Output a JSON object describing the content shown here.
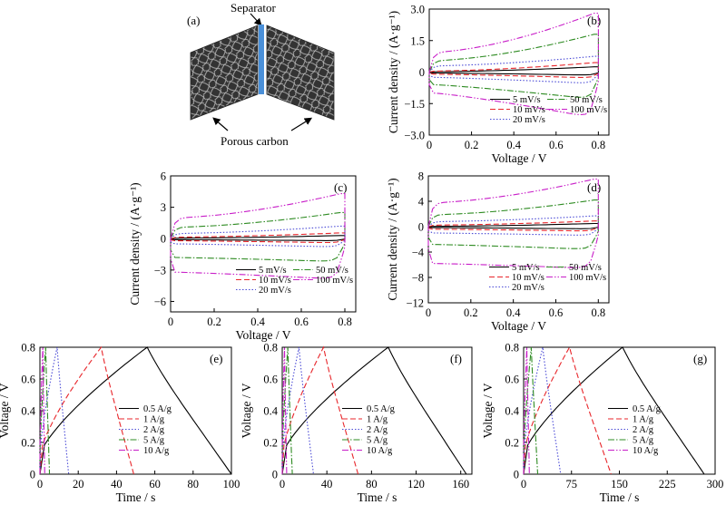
{
  "schematic": {
    "panel_label": "(a)",
    "separator_label": "Separator",
    "electrode_label": "Porous carbon",
    "colors": {
      "separator": "#4a90d9",
      "electrode": "#3a3a3a",
      "fiber": "#bcbcbc"
    }
  },
  "chart_data": [
    {
      "id": "b",
      "type": "line",
      "panel_label": "(b)",
      "xlabel": "Voltage / V",
      "ylabel": "Current density / (A·g⁻¹)",
      "xlim": [
        0,
        0.85
      ],
      "ylim": [
        -3.0,
        3.0
      ],
      "xticks": [
        0,
        0.2,
        0.4,
        0.6,
        0.8
      ],
      "xtick_labels": [
        "0",
        "0.2",
        "0.4",
        "0.6",
        "0.8"
      ],
      "yticks": [
        -3.0,
        -1.5,
        0,
        1.5,
        3.0
      ],
      "ytick_labels": [
        "−3.0",
        "−1.5",
        "0",
        "1.5",
        "3.0"
      ],
      "legend": {
        "placement": "bottom-right",
        "columns": [
          [
            "5 mV/s",
            "10 mV/s",
            "20 mV/s"
          ],
          [
            "50 mV/s",
            "100 mV/s"
          ]
        ]
      },
      "series": [
        {
          "name": "5 mV/s",
          "upper_start": 0.02,
          "upper_end": 0.25,
          "lower_start": -0.04,
          "lower_end": -0.15,
          "color": "#000000",
          "dash": ""
        },
        {
          "name": "10 mV/s",
          "upper_start": 0.05,
          "upper_end": 0.45,
          "lower_start": -0.1,
          "lower_end": -0.28,
          "color": "#e8262b",
          "dash": "6,3"
        },
        {
          "name": "20 mV/s",
          "upper_start": 0.3,
          "upper_end": 0.75,
          "lower_start": -0.25,
          "lower_end": -0.55,
          "color": "#4a4ad6",
          "dash": "1.5,2"
        },
        {
          "name": "50 mV/s",
          "upper_start": 0.55,
          "upper_end": 1.8,
          "lower_start": -0.6,
          "lower_end": -1.3,
          "color": "#2e8b22",
          "dash": "7,2,1.5,2"
        },
        {
          "name": "100 mV/s",
          "upper_start": 0.95,
          "upper_end": 2.8,
          "lower_start": -1.0,
          "lower_end": -2.2,
          "color": "#c81ec8",
          "dash": "7,2,1.5,2,1.5,2"
        }
      ]
    },
    {
      "id": "c",
      "type": "line",
      "panel_label": "(c)",
      "xlabel": "Voltage / V",
      "ylabel": "Current density / (A·g⁻¹)",
      "xlim": [
        0,
        0.85
      ],
      "ylim": [
        -7.0,
        6.0
      ],
      "xticks": [
        0,
        0.2,
        0.4,
        0.6,
        0.8
      ],
      "xtick_labels": [
        "0",
        "0.2",
        "0.4",
        "0.6",
        "0.8"
      ],
      "yticks": [
        -6,
        -3,
        0,
        3,
        6
      ],
      "ytick_labels": [
        "−6",
        "−3",
        "0",
        "3",
        "6"
      ],
      "legend": {
        "placement": "bottom-right",
        "columns": [
          [
            "5 mV/s",
            "10 mV/s",
            "20 mV/s"
          ],
          [
            "50 mV/s",
            "100 mV/s"
          ]
        ]
      },
      "series": [
        {
          "name": "5 mV/s",
          "upper_start": 0.05,
          "upper_end": 0.3,
          "lower_start": -0.1,
          "lower_end": -0.2,
          "color": "#000000",
          "dash": ""
        },
        {
          "name": "10 mV/s",
          "upper_start": 0.15,
          "upper_end": 0.55,
          "lower_start": -0.2,
          "lower_end": -0.4,
          "color": "#e8262b",
          "dash": "6,3"
        },
        {
          "name": "20 mV/s",
          "upper_start": 0.5,
          "upper_end": 1.2,
          "lower_start": -0.5,
          "lower_end": -0.8,
          "color": "#4a4ad6",
          "dash": "1.5,2"
        },
        {
          "name": "50 mV/s",
          "upper_start": 1.1,
          "upper_end": 2.5,
          "lower_start": -1.8,
          "lower_end": -2.2,
          "color": "#2e8b22",
          "dash": "7,2,1.5,2"
        },
        {
          "name": "100 mV/s",
          "upper_start": 2.0,
          "upper_end": 4.3,
          "lower_start": -3.2,
          "lower_end": -3.9,
          "color": "#c81ec8",
          "dash": "7,2,1.5,2,1.5,2"
        }
      ]
    },
    {
      "id": "d",
      "type": "line",
      "panel_label": "(d)",
      "xlabel": "Voltage / V",
      "ylabel": "Current density / (A·g⁻¹)",
      "xlim": [
        0,
        0.85
      ],
      "ylim": [
        -12.0,
        8.0
      ],
      "xticks": [
        0,
        0.2,
        0.4,
        0.6,
        0.8
      ],
      "xtick_labels": [
        "0",
        "0.2",
        "0.4",
        "0.6",
        "0.8"
      ],
      "yticks": [
        -12,
        -8,
        -4,
        0,
        4,
        8
      ],
      "ytick_labels": [
        "−12",
        "−8",
        "−4",
        "0",
        "4",
        "8"
      ],
      "legend": {
        "placement": "bottom-right",
        "columns": [
          [
            "5 mV/s",
            "10 mV/s",
            "20 mV/s"
          ],
          [
            "50 mV/s",
            "100 mV/s"
          ]
        ]
      },
      "series": [
        {
          "name": "5 mV/s",
          "upper_start": 0.05,
          "upper_end": 0.5,
          "lower_start": -0.15,
          "lower_end": -0.35,
          "color": "#000000",
          "dash": ""
        },
        {
          "name": "10 mV/s",
          "upper_start": 0.25,
          "upper_end": 0.9,
          "lower_start": -0.4,
          "lower_end": -0.7,
          "color": "#e8262b",
          "dash": "6,3"
        },
        {
          "name": "20 mV/s",
          "upper_start": 0.8,
          "upper_end": 1.7,
          "lower_start": -1.0,
          "lower_end": -1.4,
          "color": "#4a4ad6",
          "dash": "1.5,2"
        },
        {
          "name": "50 mV/s",
          "upper_start": 1.9,
          "upper_end": 4.2,
          "lower_start": -2.8,
          "lower_end": -3.6,
          "color": "#2e8b22",
          "dash": "7,2,1.5,2"
        },
        {
          "name": "100 mV/s",
          "upper_start": 3.8,
          "upper_end": 7.5,
          "lower_start": -5.8,
          "lower_end": -6.6,
          "color": "#c81ec8",
          "dash": "7,2,1.5,2,1.5,2"
        }
      ]
    },
    {
      "id": "e",
      "type": "line",
      "panel_label": "(e)",
      "xlabel": "Time / s",
      "ylabel": "Voltage / V",
      "xlim": [
        0,
        100
      ],
      "ylim": [
        0,
        0.8
      ],
      "xticks": [
        0,
        20,
        40,
        60,
        80,
        100
      ],
      "xtick_labels": [
        "0",
        "20",
        "40",
        "60",
        "80",
        "100"
      ],
      "yticks": [
        0,
        0.2,
        0.4,
        0.6,
        0.8
      ],
      "ytick_labels": [
        "0",
        "0.2",
        "0.4",
        "0.6",
        "0.8"
      ],
      "legend": {
        "placement": "center-right",
        "columns": [
          [
            "0.5 A/g",
            "1 A/g",
            "2 A/g",
            "5 A/g",
            "10 A/g"
          ]
        ]
      },
      "series": [
        {
          "name": "0.5 A/g",
          "t_peak": 56,
          "t_end": 100,
          "color": "#000000",
          "dash": ""
        },
        {
          "name": "1 A/g",
          "t_peak": 32,
          "t_end": 49,
          "color": "#e8262b",
          "dash": "6,3"
        },
        {
          "name": "2 A/g",
          "t_peak": 9,
          "t_end": 15,
          "color": "#4a4ad6",
          "dash": "1.5,2"
        },
        {
          "name": "5 A/g",
          "t_peak": 3,
          "t_end": 5,
          "color": "#2e8b22",
          "dash": "7,2,1.5,2"
        },
        {
          "name": "10 A/g",
          "t_peak": 1.5,
          "t_end": 2.5,
          "color": "#c81ec8",
          "dash": "7,2,1.5,2,1.5,2"
        }
      ]
    },
    {
      "id": "f",
      "type": "line",
      "panel_label": "(f)",
      "xlabel": "Time / s",
      "ylabel": "Voltage / V",
      "xlim": [
        0,
        170
      ],
      "ylim": [
        0,
        0.8
      ],
      "xticks": [
        0,
        40,
        80,
        120,
        160
      ],
      "xtick_labels": [
        "0",
        "40",
        "80",
        "120",
        "160"
      ],
      "yticks": [
        0,
        0.2,
        0.4,
        0.6,
        0.8
      ],
      "ytick_labels": [
        "0",
        "0.2",
        "0.4",
        "0.6",
        "0.8"
      ],
      "legend": {
        "placement": "center-right",
        "columns": [
          [
            "0.5 A/g",
            "1 A/g",
            "2 A/g",
            "5 A/g",
            "10 A/g"
          ]
        ]
      },
      "series": [
        {
          "name": "0.5 A/g",
          "t_peak": 95,
          "t_end": 165,
          "color": "#000000",
          "dash": ""
        },
        {
          "name": "1 A/g",
          "t_peak": 37,
          "t_end": 68,
          "color": "#e8262b",
          "dash": "6,3"
        },
        {
          "name": "2 A/g",
          "t_peak": 15,
          "t_end": 28,
          "color": "#4a4ad6",
          "dash": "1.5,2"
        },
        {
          "name": "5 A/g",
          "t_peak": 5,
          "t_end": 9,
          "color": "#2e8b22",
          "dash": "7,2,1.5,2"
        },
        {
          "name": "10 A/g",
          "t_peak": 2,
          "t_end": 4,
          "color": "#c81ec8",
          "dash": "7,2,1.5,2,1.5,2"
        }
      ]
    },
    {
      "id": "g",
      "type": "line",
      "panel_label": "(g)",
      "xlabel": "Time / s",
      "ylabel": "Voltage / V",
      "xlim": [
        0,
        300
      ],
      "ylim": [
        0,
        0.8
      ],
      "xticks": [
        0,
        75,
        150,
        225,
        300
      ],
      "xtick_labels": [
        "0",
        "75",
        "150",
        "225",
        "300"
      ],
      "yticks": [
        0,
        0.2,
        0.4,
        0.6,
        0.8
      ],
      "ytick_labels": [
        "0",
        "0.2",
        "0.4",
        "0.6",
        "0.8"
      ],
      "legend": {
        "placement": "center-right",
        "columns": [
          [
            "0.5 A/g",
            "1 A/g",
            "2 A/g",
            "5 A/g",
            "10 A/g"
          ]
        ]
      },
      "series": [
        {
          "name": "0.5 A/g",
          "t_peak": 155,
          "t_end": 283,
          "color": "#000000",
          "dash": ""
        },
        {
          "name": "1 A/g",
          "t_peak": 72,
          "t_end": 137,
          "color": "#e8262b",
          "dash": "6,3"
        },
        {
          "name": "2 A/g",
          "t_peak": 30,
          "t_end": 58,
          "color": "#4a4ad6",
          "dash": "1.5,2"
        },
        {
          "name": "5 A/g",
          "t_peak": 12,
          "t_end": 22,
          "color": "#2e8b22",
          "dash": "7,2,1.5,2"
        },
        {
          "name": "10 A/g",
          "t_peak": 5,
          "t_end": 9,
          "color": "#c81ec8",
          "dash": "7,2,1.5,2,1.5,2"
        }
      ]
    }
  ]
}
